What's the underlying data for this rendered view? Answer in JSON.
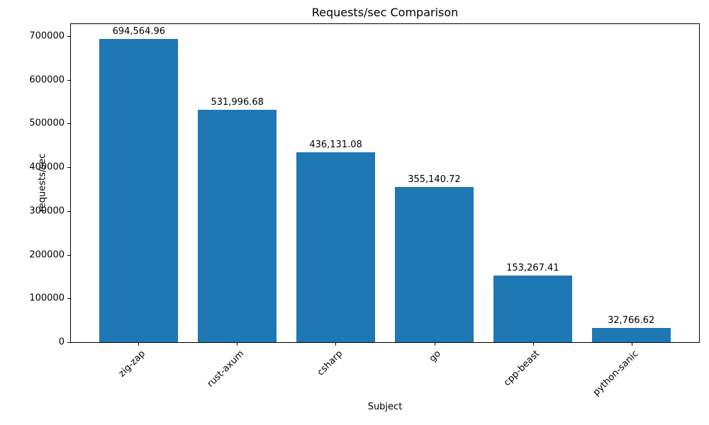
{
  "chart_data": {
    "type": "bar",
    "title": "Requests/sec Comparison",
    "xlabel": "Subject",
    "ylabel": "requests/sec",
    "categories": [
      "zig-zap",
      "rust-axum",
      "csharp",
      "go",
      "cpp-beast",
      "python-sanic"
    ],
    "values": [
      694564.96,
      531996.68,
      436131.08,
      355140.72,
      153267.41,
      32766.62
    ],
    "value_labels": [
      "694,564.96",
      "531,996.68",
      "436,131.08",
      "355,140.72",
      "153,267.41",
      "32,766.62"
    ],
    "yticks": [
      0,
      100000,
      200000,
      300000,
      400000,
      500000,
      600000,
      700000
    ],
    "ytick_labels": [
      "0",
      "100000",
      "200000",
      "300000",
      "400000",
      "500000",
      "600000",
      "700000"
    ],
    "ylim": [
      0,
      729293
    ],
    "bar_color": "#1f77b4",
    "grid": false,
    "legend": null,
    "x_tick_rotation_deg": 45
  }
}
